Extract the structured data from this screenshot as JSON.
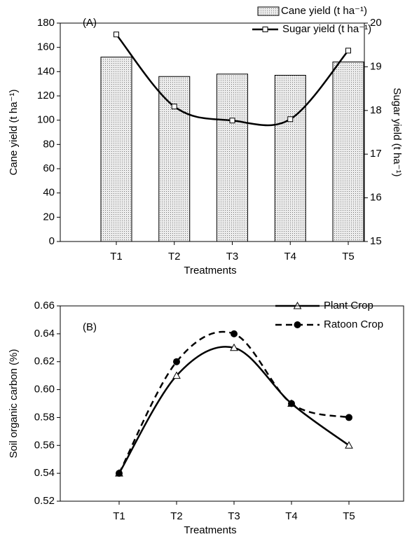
{
  "chart_data": [
    {
      "type": "bar",
      "annotation": "(A)",
      "x_label": "Treatments",
      "y_label": "Cane yield (t ha⁻¹)",
      "y2_label": "Sugar yield (t ha⁻¹)",
      "categories": [
        "T1",
        "T2",
        "T3",
        "T4",
        "T5"
      ],
      "series": [
        {
          "name": "Cane yield (t ha⁻¹)",
          "type": "bar",
          "color": "#d8d8d8",
          "values": [
            152,
            136,
            138,
            137,
            148
          ]
        },
        {
          "name": "Sugar yield (t ha⁻¹)",
          "type": "line",
          "axis": "y2",
          "marker": "square",
          "color": "#000000",
          "values": [
            19.74,
            18.09,
            17.77,
            17.8,
            19.37
          ]
        }
      ],
      "ylim": [
        0,
        180
      ],
      "yticks": [
        0,
        20,
        40,
        60,
        80,
        100,
        120,
        140,
        160,
        180
      ],
      "y2lim": [
        15,
        20
      ],
      "y2ticks": [
        15,
        16,
        17,
        18,
        19,
        20
      ]
    },
    {
      "type": "line",
      "annotation": "(B)",
      "x_label": "Treatments",
      "y_label": "Soil organic carbon (%)",
      "categories": [
        "T1",
        "T2",
        "T3",
        "T4",
        "T5"
      ],
      "series": [
        {
          "name": "Plant Crop",
          "marker": "triangle",
          "dashed": false,
          "color": "#000000",
          "values": [
            0.54,
            0.61,
            0.63,
            0.59,
            0.56
          ]
        },
        {
          "name": "Ratoon Crop",
          "marker": "circle",
          "dashed": true,
          "color": "#000000",
          "values": [
            0.54,
            0.62,
            0.64,
            0.59,
            0.58
          ]
        }
      ],
      "ylim": [
        0.52,
        0.66
      ],
      "yticks": [
        0.52,
        0.54,
        0.56,
        0.58,
        {
          "value": 0.6,
          "label": "0.60"
        },
        0.62,
        0.64,
        0.66
      ]
    }
  ]
}
